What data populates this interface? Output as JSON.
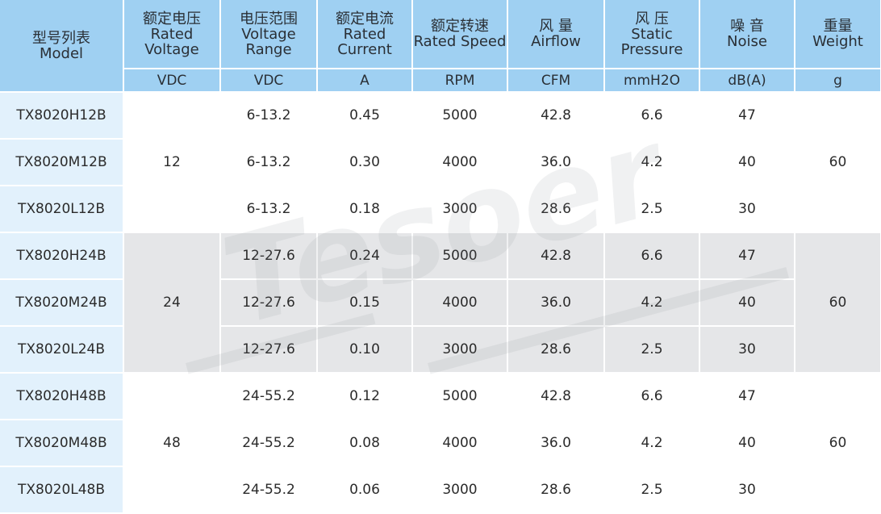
{
  "header": {
    "columns": [
      {
        "zh": "型号列表",
        "en": "Model",
        "unit": ""
      },
      {
        "zh": "额定电压",
        "en": "Rated Voltage",
        "unit": "VDC"
      },
      {
        "zh": "电压范围",
        "en": "Voltage Range",
        "unit": "VDC"
      },
      {
        "zh": "额定电流",
        "en": "Rated Current",
        "unit": "A"
      },
      {
        "zh": "额定转速",
        "en": "Rated Speed",
        "unit": "RPM"
      },
      {
        "zh": "风 量",
        "en": "Airflow",
        "unit": "CFM"
      },
      {
        "zh": "风 压",
        "en": "Static Pressure",
        "unit": "mmH2O"
      },
      {
        "zh": "噪 音",
        "en": "Noise",
        "unit": "dB(A)"
      },
      {
        "zh": "重量",
        "en": "Weight",
        "unit": "g"
      }
    ]
  },
  "groups": [
    {
      "voltage": "12",
      "weight": "60",
      "rows": [
        {
          "model": "TX8020H12B",
          "range": "6-13.2",
          "current": "0.45",
          "speed": "5000",
          "airflow": "42.8",
          "pressure": "6.6",
          "noise": "47"
        },
        {
          "model": "TX8020M12B",
          "range": "6-13.2",
          "current": "0.30",
          "speed": "4000",
          "airflow": "36.0",
          "pressure": "4.2",
          "noise": "40"
        },
        {
          "model": "TX8020L12B",
          "range": "6-13.2",
          "current": "0.18",
          "speed": "3000",
          "airflow": "28.6",
          "pressure": "2.5",
          "noise": "30"
        }
      ]
    },
    {
      "voltage": "24",
      "weight": "60",
      "rows": [
        {
          "model": "TX8020H24B",
          "range": "12-27.6",
          "current": "0.24",
          "speed": "5000",
          "airflow": "42.8",
          "pressure": "6.6",
          "noise": "47"
        },
        {
          "model": "TX8020M24B",
          "range": "12-27.6",
          "current": "0.15",
          "speed": "4000",
          "airflow": "36.0",
          "pressure": "4.2",
          "noise": "40"
        },
        {
          "model": "TX8020L24B",
          "range": "12-27.6",
          "current": "0.10",
          "speed": "3000",
          "airflow": "28.6",
          "pressure": "2.5",
          "noise": "30"
        }
      ]
    },
    {
      "voltage": "48",
      "weight": "60",
      "rows": [
        {
          "model": "TX8020H48B",
          "range": "24-55.2",
          "current": "0.12",
          "speed": "5000",
          "airflow": "42.8",
          "pressure": "6.6",
          "noise": "47"
        },
        {
          "model": "TX8020M48B",
          "range": "24-55.2",
          "current": "0.08",
          "speed": "4000",
          "airflow": "36.0",
          "pressure": "4.2",
          "noise": "40"
        },
        {
          "model": "TX8020L48B",
          "range": "24-55.2",
          "current": "0.06",
          "speed": "3000",
          "airflow": "28.6",
          "pressure": "2.5",
          "noise": "30"
        }
      ]
    }
  ],
  "watermark": {
    "text": "Tesoer",
    "color": "#7a7f86"
  },
  "colors": {
    "header": "#9fd0f2",
    "model_cell": "#e2f1fc",
    "shaded_row": "#e5e6e8"
  }
}
